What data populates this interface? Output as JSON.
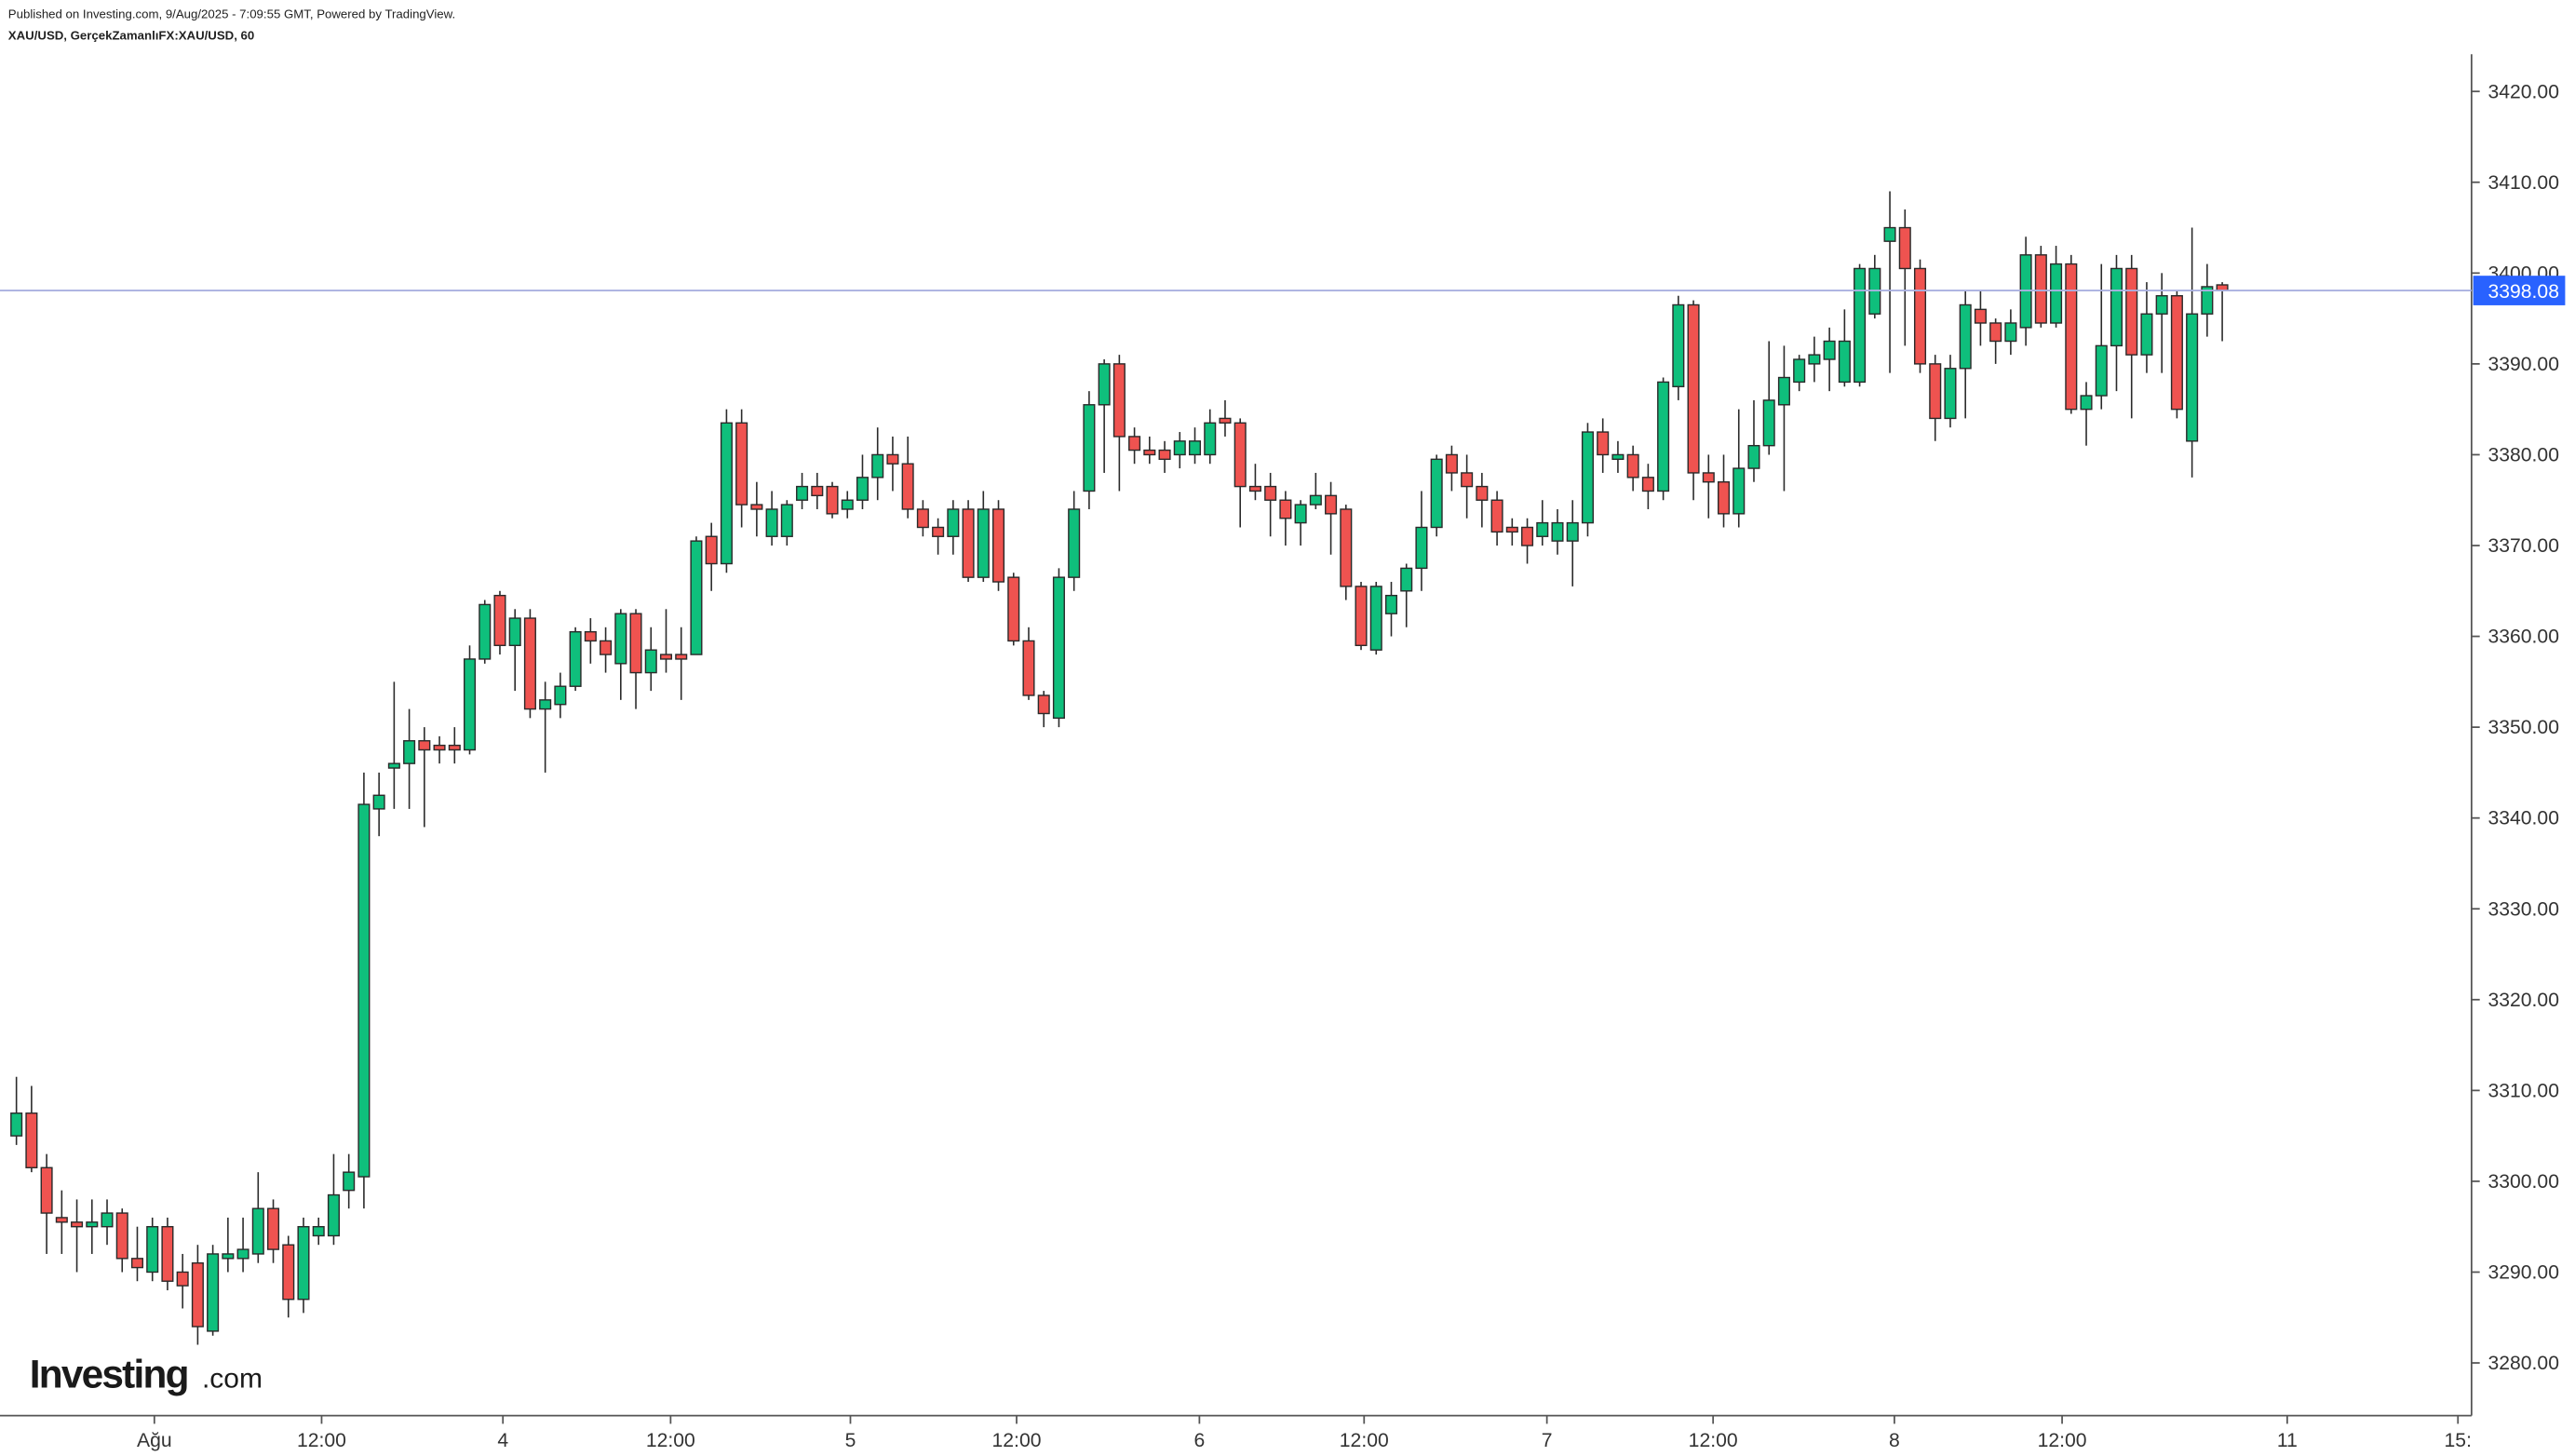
{
  "chart_data": {
    "type": "candlestick",
    "header": "Published on Investing.com, 9/Aug/2025 - 7:09:55 GMT, Powered by TradingView.",
    "title": "XAU/USD, GerçekZamanlıFX:XAU/USD, 60",
    "logo": "Investing",
    "logo_suffix": ".com",
    "up_color": "#0fbf7c",
    "down_color": "#ef5350",
    "edge_color": "#2a2a2a",
    "last_price": 3398.08,
    "last_price_color": "#2962ff",
    "open": [
      3305,
      3307.5,
      3301.5,
      3296,
      3295.5,
      3295,
      3295,
      3296.5,
      3291.5,
      3290,
      3295,
      3290,
      3291,
      3283.5,
      3291.5,
      3291.5,
      3292,
      3297,
      3293,
      3287,
      3294,
      3294,
      3299,
      3300.5,
      3341,
      3345.5,
      3346,
      3348.5,
      3348,
      3348,
      3347.5,
      3357.5,
      3364.5,
      3359,
      3362,
      3352,
      3352.5,
      3354.5,
      3360.5,
      3359.5,
      3357,
      3362.5,
      3356,
      3358,
      3358,
      3358,
      3371,
      3368,
      3383.5,
      3374.5,
      3371,
      3371,
      3375,
      3376.5,
      3376.5,
      3374,
      3375,
      3377.5,
      3380,
      3379,
      3374,
      3372,
      3371,
      3374,
      3366.5,
      3374,
      3366.5,
      3359.5,
      3353.5,
      3351,
      3366.5,
      3376,
      3385.5,
      3390,
      3382,
      3380.5,
      3380.5,
      3380,
      3380,
      3380,
      3384,
      3383.5,
      3376.5,
      3376.5,
      3375,
      3372.5,
      3374.5,
      3375.5,
      3374,
      3365.5,
      3358.5,
      3362.5,
      3365,
      3367.5,
      3372,
      3380,
      3378,
      3376.5,
      3375,
      3372,
      3372,
      3371,
      3370.5,
      3370.5,
      3372.5,
      3382.5,
      3379.5,
      3380,
      3377.5,
      3376,
      3387.5,
      3396.5,
      3378,
      3377,
      3373.5,
      3378.5,
      3381,
      3385.5,
      3388,
      3390,
      3390.5,
      3388,
      3388,
      3395.5,
      3403.5,
      3405,
      3400.5,
      3390,
      3384,
      3389.5,
      3396,
      3394.5,
      3392.5,
      3394,
      3402,
      3394.5,
      3401,
      3385,
      3386.5,
      3392,
      3400.5,
      3391,
      3395.5,
      3397.5,
      3381.5,
      3395.5,
      3398.7
    ],
    "high": [
      3311.5,
      3310.5,
      3303,
      3299,
      3298,
      3298,
      3298,
      3297,
      3295,
      3296,
      3296,
      3292,
      3293,
      3293,
      3296,
      3296,
      3301,
      3298,
      3294,
      3296,
      3296,
      3303,
      3303,
      3345,
      3345,
      3355,
      3352,
      3350,
      3349,
      3350,
      3359,
      3364,
      3365,
      3363,
      3363,
      3355,
      3356,
      3361,
      3362,
      3361,
      3363,
      3363,
      3361,
      3363,
      3361,
      3371,
      3372.5,
      3385,
      3385,
      3377,
      3376,
      3375,
      3378,
      3378,
      3377,
      3376,
      3380,
      3383,
      3382,
      3382,
      3375,
      3373,
      3375,
      3375,
      3376,
      3375,
      3367,
      3361,
      3354,
      3367.5,
      3376,
      3387,
      3390.5,
      3391,
      3383,
      3382,
      3381.5,
      3382.5,
      3383,
      3385,
      3386,
      3384,
      3379,
      3378,
      3376,
      3375,
      3378,
      3377,
      3374.5,
      3366,
      3366,
      3366,
      3368,
      3376,
      3380,
      3381,
      3380,
      3378,
      3376,
      3373,
      3373,
      3375,
      3374,
      3375,
      3383.5,
      3384,
      3381.5,
      3381,
      3379,
      3388.5,
      3397.5,
      3397,
      3380,
      3380,
      3385,
      3386,
      3392.5,
      3392,
      3391,
      3393,
      3394,
      3396,
      3401,
      3402,
      3409,
      3407,
      3401.5,
      3391,
      3391,
      3398,
      3398,
      3395,
      3396,
      3404,
      3403,
      3403,
      3402,
      3388,
      3401,
      3402,
      3402,
      3399,
      3400,
      3398,
      3405,
      3401,
      3399
    ],
    "low": [
      3304,
      3301,
      3292,
      3292,
      3290,
      3292,
      3293,
      3290,
      3289,
      3289,
      3288,
      3286,
      3282,
      3283,
      3290,
      3290,
      3291,
      3291,
      3285,
      3285.5,
      3293,
      3293,
      3297,
      3297,
      3338,
      3341,
      3341,
      3339,
      3346,
      3346,
      3347,
      3357,
      3358,
      3354,
      3351,
      3345,
      3351,
      3354,
      3357,
      3356,
      3353,
      3352,
      3354,
      3356,
      3353,
      3358,
      3365,
      3367,
      3372,
      3371,
      3370,
      3370,
      3374,
      3374,
      3373,
      3373,
      3374,
      3375,
      3376,
      3373,
      3371,
      3369,
      3369,
      3366,
      3366,
      3365,
      3359,
      3353,
      3350,
      3350,
      3365,
      3374,
      3378,
      3376,
      3379,
      3379,
      3378,
      3378.5,
      3379,
      3379,
      3382,
      3372,
      3375,
      3371,
      3370,
      3370,
      3374,
      3369,
      3364,
      3358.5,
      3358,
      3360,
      3361,
      3365,
      3371,
      3376,
      3373,
      3372,
      3370,
      3370,
      3368,
      3370,
      3369,
      3365.5,
      3371,
      3378,
      3378,
      3376,
      3374,
      3375,
      3386,
      3375,
      3373,
      3372,
      3372,
      3377,
      3380,
      3376,
      3387,
      3388,
      3387,
      3387.5,
      3387.5,
      3395,
      3389,
      3392,
      3389,
      3381.5,
      3383,
      3384,
      3392,
      3390,
      3391,
      3392,
      3394,
      3394,
      3384.5,
      3381,
      3385,
      3387,
      3384,
      3389,
      3389,
      3384,
      3377.5,
      3393,
      3392.5
    ],
    "close": [
      3307.5,
      3301.5,
      3296.5,
      3295.5,
      3295,
      3295.5,
      3296.5,
      3291.5,
      3290.5,
      3295,
      3289,
      3288.5,
      3284,
      3292,
      3292,
      3292.5,
      3297,
      3292.5,
      3287,
      3295,
      3295,
      3298.5,
      3301,
      3341.5,
      3342.5,
      3346,
      3348.5,
      3347.5,
      3347.5,
      3347.5,
      3357.5,
      3363.5,
      3359,
      3362,
      3352,
      3353,
      3354.5,
      3360.5,
      3359.5,
      3358,
      3362.5,
      3356,
      3358.5,
      3357.5,
      3357.5,
      3370.5,
      3368,
      3383.5,
      3374.5,
      3374,
      3374,
      3374.5,
      3376.5,
      3375.5,
      3373.5,
      3375,
      3377.5,
      3380,
      3379,
      3374,
      3372,
      3371,
      3374,
      3366.5,
      3374,
      3366,
      3359.5,
      3353.5,
      3351.5,
      3366.5,
      3374,
      3385.5,
      3390,
      3382,
      3380.5,
      3380,
      3379.5,
      3381.5,
      3381.5,
      3383.5,
      3383.5,
      3376.5,
      3376,
      3375,
      3373,
      3374.5,
      3375.5,
      3373.5,
      3365.5,
      3359,
      3365.5,
      3364.5,
      3367.5,
      3372,
      3379.5,
      3378,
      3376.5,
      3375,
      3371.5,
      3371.5,
      3370,
      3372.5,
      3372.5,
      3372.5,
      3382.5,
      3380,
      3380,
      3377.5,
      3376,
      3388,
      3396.5,
      3378,
      3377,
      3373.5,
      3378.5,
      3381,
      3386,
      3388.5,
      3390.5,
      3391,
      3392.5,
      3392.5,
      3400.5,
      3400.5,
      3405,
      3400.5,
      3390,
      3384,
      3389.5,
      3396.5,
      3394.5,
      3392.5,
      3394.5,
      3402,
      3394.5,
      3401,
      3385,
      3386.5,
      3392,
      3400.5,
      3391,
      3395.5,
      3397.5,
      3385,
      3395.5,
      3398.5,
      3398.08
    ],
    "xlim": [
      -1.087,
      162.5
    ],
    "xticks": [
      {
        "value": 9.13,
        "label": "Ağu"
      },
      {
        "value": 20.2,
        "label": "12:00"
      },
      {
        "value": 32.2,
        "label": "4"
      },
      {
        "value": 43.3,
        "label": "12:00"
      },
      {
        "value": 55.2,
        "label": "5"
      },
      {
        "value": 66.2,
        "label": "12:00"
      },
      {
        "value": 78.3,
        "label": "6"
      },
      {
        "value": 89.2,
        "label": "12:00"
      },
      {
        "value": 101.3,
        "label": "7"
      },
      {
        "value": 112.3,
        "label": "12:00"
      },
      {
        "value": 124.3,
        "label": "8"
      },
      {
        "value": 135.4,
        "label": "12:00"
      },
      {
        "value": 150.3,
        "label": "11"
      },
      {
        "value": 161.6,
        "label": "15:"
      }
    ],
    "ylim": [
      3274.2,
      3424.1
    ],
    "yticks": [
      {
        "value": 3280,
        "label": "3280.00"
      },
      {
        "value": 3290,
        "label": "3290.00"
      },
      {
        "value": 3300,
        "label": "3300.00"
      },
      {
        "value": 3310,
        "label": "3310.00"
      },
      {
        "value": 3320,
        "label": "3320.00"
      },
      {
        "value": 3330,
        "label": "3330.00"
      },
      {
        "value": 3340,
        "label": "3340.00"
      },
      {
        "value": 3350,
        "label": "3350.00"
      },
      {
        "value": 3360,
        "label": "3360.00"
      },
      {
        "value": 3370,
        "label": "3370.00"
      },
      {
        "value": 3380,
        "label": "3380.00"
      },
      {
        "value": 3390,
        "label": "3390.00"
      },
      {
        "value": 3400,
        "label": "3400.00"
      },
      {
        "value": 3410,
        "label": "3410.00"
      },
      {
        "value": 3420,
        "label": "3420.00"
      }
    ],
    "grid": false
  }
}
